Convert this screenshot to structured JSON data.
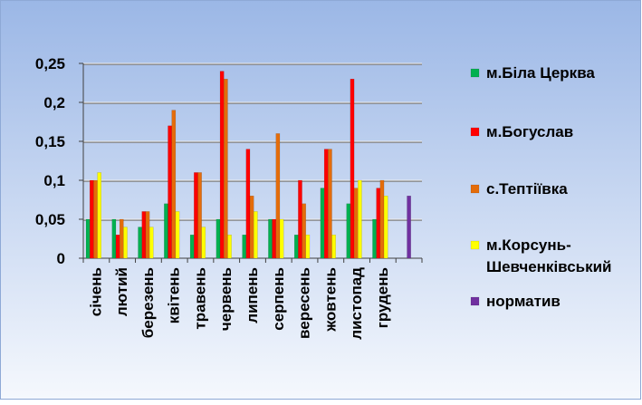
{
  "chart_data": {
    "type": "bar",
    "title": "",
    "xlabel": "",
    "ylabel": "",
    "ylim": [
      0,
      0.25
    ],
    "yticks": [
      0,
      0.05,
      0.1,
      0.15,
      0.2,
      0.25
    ],
    "ytick_labels": [
      "0",
      "0,05",
      "0,1",
      "0,15",
      "0,2",
      "0,25"
    ],
    "grid": true,
    "legend_position": "right",
    "categories": [
      "січень",
      "лютий",
      "березень",
      "квітень",
      "травень",
      "червень",
      "липень",
      "серпень",
      "вересень",
      "жовтень",
      "листопад",
      "грудень",
      ""
    ],
    "series": [
      {
        "name": "м.Біла Церква",
        "color": "#00B050",
        "values": [
          0.05,
          0.05,
          0.04,
          0.07,
          0.03,
          0.05,
          0.03,
          0.05,
          0.03,
          0.09,
          0.07,
          0.05,
          null
        ]
      },
      {
        "name": "м.Богуслав",
        "color": "#FF0000",
        "values": [
          0.1,
          0.03,
          0.06,
          0.17,
          0.11,
          0.24,
          0.14,
          0.05,
          0.1,
          0.14,
          0.23,
          0.09,
          null
        ]
      },
      {
        "name": "с.Тептіївка",
        "color": "#E46C0A",
        "values": [
          0.1,
          0.05,
          0.06,
          0.19,
          0.11,
          0.23,
          0.08,
          0.16,
          0.07,
          0.14,
          0.09,
          0.1,
          null
        ]
      },
      {
        "name": "м.Корсунь-Шевченківський",
        "color": "#FFFF00",
        "values": [
          0.11,
          0.04,
          0.04,
          0.06,
          0.04,
          0.03,
          0.06,
          0.05,
          0.03,
          0.03,
          0.1,
          0.08,
          null
        ]
      },
      {
        "name": "норматив",
        "color": "#7030A0",
        "values": [
          null,
          null,
          null,
          null,
          null,
          null,
          null,
          null,
          null,
          null,
          null,
          null,
          0.08
        ]
      }
    ],
    "legend_label_lines": [
      [
        "м.Біла Церква"
      ],
      [
        "м.Богуслав"
      ],
      [
        "с.Тептіївка"
      ],
      [
        "м.Корсунь-",
        "Шевченківський"
      ],
      [
        "норматив"
      ]
    ]
  }
}
